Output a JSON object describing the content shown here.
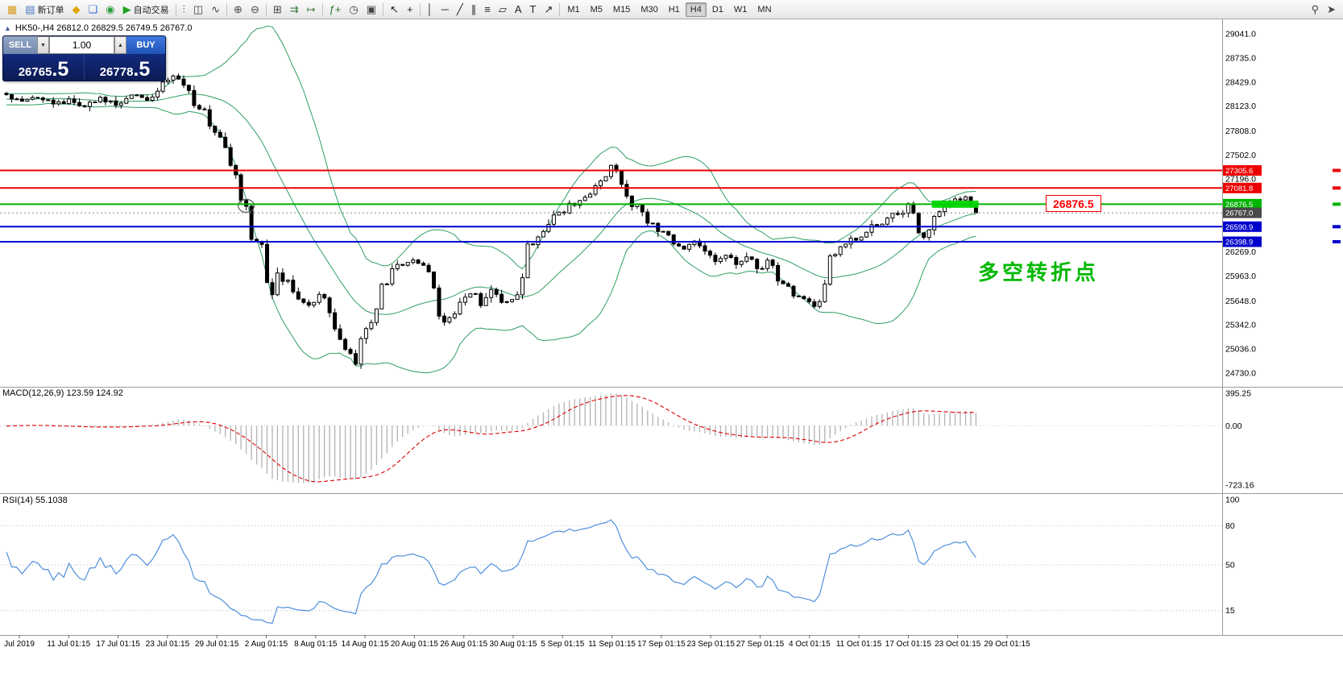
{
  "toolbar": {
    "items": [
      {
        "name": "app-icon",
        "glyph": "▦",
        "color": "#d49a1a"
      },
      {
        "name": "new-order-button",
        "glyph": "▤",
        "color": "#4a78c2",
        "label": "新订单"
      },
      {
        "name": "profiles-icon",
        "glyph": "◆",
        "color": "#e0a400"
      },
      {
        "name": "charts-grid-icon",
        "glyph": "❏",
        "color": "#3b6fd4"
      },
      {
        "name": "refresh-icon",
        "glyph": "◉",
        "color": "#2f9e44"
      },
      {
        "name": "autotrading-button",
        "glyph": "▶",
        "color": "#21a121",
        "label": "自动交易"
      },
      {
        "sep": true
      },
      {
        "name": "bar-chart-icon",
        "glyph": "⫶",
        "color": "#444"
      },
      {
        "name": "candlestick-chart-icon",
        "glyph": "◫",
        "color": "#444"
      },
      {
        "name": "line-chart-icon",
        "glyph": "∿",
        "color": "#444"
      },
      {
        "sep": true
      },
      {
        "name": "zoom-in-icon",
        "glyph": "⊕",
        "color": "#444"
      },
      {
        "name": "zoom-out-icon",
        "glyph": "⊖",
        "color": "#444"
      },
      {
        "sep": true
      },
      {
        "name": "tile-windows-icon",
        "glyph": "⊞",
        "color": "#444"
      },
      {
        "name": "auto-scroll-icon",
        "glyph": "⇉",
        "color": "#3a7a3a"
      },
      {
        "name": "chart-shift-icon",
        "glyph": "↦",
        "color": "#3a7a3a"
      },
      {
        "sep": true
      },
      {
        "name": "indicators-icon",
        "glyph": "ƒ+",
        "color": "#2a7a2a"
      },
      {
        "name": "periods-icon",
        "glyph": "◷",
        "color": "#444"
      },
      {
        "name": "templates-icon",
        "glyph": "▣",
        "color": "#444"
      },
      {
        "sep": true
      },
      {
        "name": "cursor-icon",
        "glyph": "↖",
        "color": "#222"
      },
      {
        "name": "crosshair-icon",
        "glyph": "+",
        "color": "#222"
      },
      {
        "sep": true
      },
      {
        "name": "vertical-line-icon",
        "glyph": "│",
        "color": "#222"
      },
      {
        "name": "horizontal-line-icon",
        "glyph": "─",
        "color": "#222"
      },
      {
        "name": "trendline-icon",
        "glyph": "╱",
        "color": "#222"
      },
      {
        "name": "channel-icon",
        "glyph": "∥",
        "color": "#222"
      },
      {
        "name": "fibonacci-icon",
        "glyph": "≡",
        "color": "#222"
      },
      {
        "name": "shapes-icon",
        "glyph": "▱",
        "color": "#222"
      },
      {
        "name": "text-icon",
        "glyph": "A",
        "color": "#222"
      },
      {
        "name": "label-icon",
        "glyph": "T",
        "color": "#222"
      },
      {
        "name": "arrows-icon",
        "glyph": "↗",
        "color": "#222"
      },
      {
        "sep": true
      }
    ],
    "timeframes": [
      "M1",
      "M5",
      "M15",
      "M30",
      "H1",
      "H4",
      "D1",
      "W1",
      "MN"
    ],
    "active_timeframe": "H4",
    "right_items": [
      {
        "name": "symbol-search-icon",
        "glyph": "⚲",
        "color": "#444"
      },
      {
        "name": "quick-nav-icon",
        "glyph": "➤",
        "color": "#444"
      }
    ]
  },
  "chart": {
    "title": "HK50-,H4 26812.0 26829.5 26749.5 26767.0",
    "collapse_arrow": "▲",
    "annotation": {
      "text": "多空转折点",
      "color": "#00b800"
    },
    "price_callout": {
      "text": "26876.5",
      "color": "#ff0000"
    }
  },
  "trade_panel": {
    "sell_button": "SELL",
    "buy_button": "BUY",
    "volume": "1.00",
    "step_down_glyph": "▼",
    "step_up_glyph": "▲",
    "sell_price": {
      "main": "26765",
      "big": ".5"
    },
    "buy_price": {
      "main": "26778",
      "big": ".5"
    }
  },
  "macd_panel": {
    "label": "MACD(12,26,9) 123.59 124.92"
  },
  "rsi_panel": {
    "label": "RSI(14) 55.1038"
  },
  "chart_data": {
    "type": "candlestick",
    "symbol": "HK50-",
    "timeframe": "H4",
    "ohlc_current": {
      "open": 26812.0,
      "high": 26829.5,
      "low": 26749.5,
      "close": 26767.0
    },
    "bid": 26765.5,
    "ask": 26778.5,
    "price_axis_labels": [
      "29041.0",
      "28735.0",
      "28429.0",
      "28123.0",
      "27808.0",
      "27502.0",
      "27196.0",
      "26269.0",
      "25963.0",
      "25648.0",
      "25342.0",
      "25036.0",
      "24730.0"
    ],
    "time_axis_labels": [
      "Jul 2019",
      "11 Jul 01:15",
      "17 Jul 01:15",
      "23 Jul 01:15",
      "29 Jul 01:15",
      "2 Aug 01:15",
      "8 Aug 01:15",
      "14 Aug 01:15",
      "20 Aug 01:15",
      "26 Aug 01:15",
      "30 Aug 01:15",
      "5 Sep 01:15",
      "11 Sep 01:15",
      "17 Sep 01:15",
      "23 Sep 01:15",
      "27 Sep 01:15",
      "4 Oct 01:15",
      "11 Oct 01:15",
      "17 Oct 01:15",
      "23 Oct 01:15",
      "29 Oct 01:15"
    ],
    "levels": [
      {
        "price": 27305.6,
        "label": "27305.6",
        "color": "#ee0000"
      },
      {
        "price": 27081.8,
        "label": "27081.8",
        "color": "#ee0000"
      },
      {
        "price": 26876.5,
        "label": "26876.5",
        "color": "#00b400"
      },
      {
        "price": 26590.9,
        "label": "26590.9",
        "color": "#0000cc"
      },
      {
        "price": 26398.9,
        "label": "26398.9",
        "color": "#0000cc"
      }
    ],
    "current_price": {
      "price": 26767.0,
      "label": "26767.0",
      "tag_color": "#4a4a4a"
    },
    "highlight_zone": {
      "price": 26876.5,
      "bar_start": 178,
      "bar_end": 186,
      "color": "#00d400",
      "thickness": 9
    },
    "ellipse_marker": {
      "bar": 46,
      "price": 26876.5
    },
    "bollinger": {
      "period": 20,
      "deviation": 2,
      "color": "#2f9e63"
    },
    "macd": {
      "fast": 12,
      "slow": 26,
      "signal": 9,
      "value": 123.59,
      "signal_value": 124.92,
      "scale_values": [
        395.25,
        0.0,
        -723.16
      ],
      "scale_labels": [
        "395.25",
        "0.00",
        "-723.16"
      ],
      "histogram_color": "#b2b2b2",
      "signal_color": "#dd0000"
    },
    "rsi": {
      "period": 14,
      "value": 55.1038,
      "level_values": [
        100,
        80,
        50,
        15
      ],
      "scale_labels": [
        "100",
        "80",
        "50",
        "15"
      ],
      "color": "#4f8fdd"
    },
    "visible_bars": 187,
    "seed": 20191029,
    "price_anchors": [
      [
        -40,
        28200
      ],
      [
        -25,
        28300
      ],
      [
        -12,
        28150
      ],
      [
        0,
        28280
      ],
      [
        3,
        28180
      ],
      [
        6,
        28240
      ],
      [
        9,
        28140
      ],
      [
        12,
        28200
      ],
      [
        15,
        28120
      ],
      [
        18,
        28220
      ],
      [
        21,
        28150
      ],
      [
        24,
        28280
      ],
      [
        27,
        28220
      ],
      [
        30,
        28380
      ],
      [
        32,
        28520
      ],
      [
        34,
        28420
      ],
      [
        36,
        28180
      ],
      [
        38,
        28020
      ],
      [
        40,
        27850
      ],
      [
        42,
        27600
      ],
      [
        44,
        27200
      ],
      [
        45,
        26950
      ],
      [
        46,
        26870
      ],
      [
        47,
        26430
      ],
      [
        48,
        26380
      ],
      [
        49,
        26350
      ],
      [
        50,
        25900
      ],
      [
        51,
        25750
      ],
      [
        52,
        25980
      ],
      [
        54,
        25850
      ],
      [
        56,
        25700
      ],
      [
        58,
        25600
      ],
      [
        60,
        25750
      ],
      [
        62,
        25500
      ],
      [
        63,
        25350
      ],
      [
        64,
        25200
      ],
      [
        65,
        25050
      ],
      [
        66,
        24950
      ],
      [
        67,
        24900
      ],
      [
        68,
        25100
      ],
      [
        70,
        25400
      ],
      [
        72,
        25800
      ],
      [
        74,
        26050
      ],
      [
        76,
        26120
      ],
      [
        78,
        26180
      ],
      [
        80,
        26100
      ],
      [
        82,
        25850
      ],
      [
        83,
        25500
      ],
      [
        84,
        25350
      ],
      [
        85,
        25450
      ],
      [
        87,
        25650
      ],
      [
        89,
        25750
      ],
      [
        91,
        25600
      ],
      [
        93,
        25800
      ],
      [
        95,
        25600
      ],
      [
        97,
        25680
      ],
      [
        99,
        25900
      ],
      [
        100,
        26300
      ],
      [
        102,
        26480
      ],
      [
        104,
        26600
      ],
      [
        106,
        26750
      ],
      [
        108,
        26850
      ],
      [
        110,
        26950
      ],
      [
        112,
        27060
      ],
      [
        114,
        27200
      ],
      [
        116,
        27380
      ],
      [
        117,
        27300
      ],
      [
        118,
        27150
      ],
      [
        120,
        26900
      ],
      [
        122,
        26750
      ],
      [
        124,
        26620
      ],
      [
        126,
        26500
      ],
      [
        128,
        26380
      ],
      [
        130,
        26320
      ],
      [
        132,
        26400
      ],
      [
        134,
        26250
      ],
      [
        136,
        26150
      ],
      [
        138,
        26220
      ],
      [
        140,
        26100
      ],
      [
        142,
        26200
      ],
      [
        144,
        26050
      ],
      [
        146,
        26150
      ],
      [
        148,
        25950
      ],
      [
        150,
        25800
      ],
      [
        152,
        25700
      ],
      [
        154,
        25600
      ],
      [
        155,
        25550
      ],
      [
        156,
        25650
      ],
      [
        157,
        25800
      ],
      [
        158,
        26150
      ],
      [
        160,
        26300
      ],
      [
        162,
        26420
      ],
      [
        164,
        26500
      ],
      [
        166,
        26580
      ],
      [
        168,
        26650
      ],
      [
        170,
        26720
      ],
      [
        172,
        26820
      ],
      [
        173,
        26900
      ],
      [
        174,
        26750
      ],
      [
        175,
        26550
      ],
      [
        176,
        26480
      ],
      [
        177,
        26620
      ],
      [
        178,
        26750
      ],
      [
        180,
        26850
      ],
      [
        182,
        26920
      ],
      [
        184,
        26950
      ],
      [
        185,
        26880
      ],
      [
        186,
        26767
      ]
    ]
  }
}
